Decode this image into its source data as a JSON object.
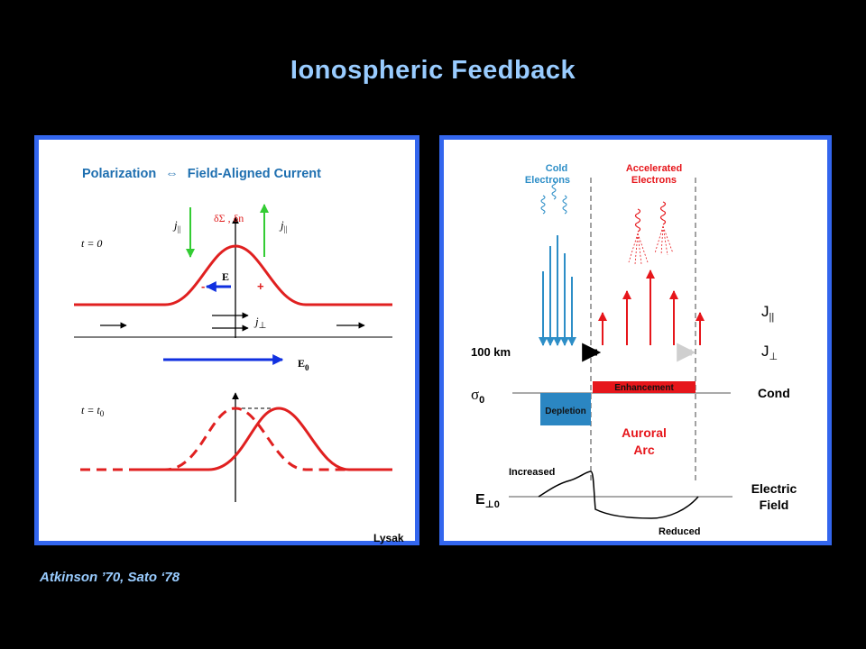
{
  "slide": {
    "title": "Ionospheric Feedback",
    "citation": "Atkinson ’70, Sato ‘78"
  },
  "left_panel": {
    "heading_left": "Polarization",
    "heading_symbol": "⇔",
    "heading_right": "Field-Aligned Current",
    "t0_label": "t = 0",
    "tt0_label": "t = t",
    "tt0_sub": "0",
    "j_par_left": "j",
    "j_par_right": "j",
    "par_sub": "||",
    "delta_label": "δΣ , δn",
    "e_label": "E",
    "minus": "-",
    "plus": "+",
    "j_perp": "j",
    "perp_sub": "⊥",
    "e0_label": "E",
    "e0_sub": "0",
    "credit": "Lysak"
  },
  "right_panel": {
    "cold_electrons": [
      "Cold",
      "Electrons"
    ],
    "accelerated_electrons": [
      "Accelerated",
      "Electrons"
    ],
    "j_parallel": "J",
    "j_perp": "J",
    "par_sub": "||",
    "perp_sub": "⊥",
    "altitude": "100 km",
    "sigma": "σ",
    "sigma_sub": "0",
    "cond": "Cond",
    "enhancement": "Enhancement",
    "depletion": "Depletion",
    "auroral_arc": [
      "Auroral",
      "Arc"
    ],
    "increased": "Increased",
    "e_perp": "E",
    "e_perp_sub": "⊥0",
    "electric_field": [
      "Electric",
      "Field"
    ],
    "reduced": "Reduced"
  },
  "colors": {
    "title": "#99ccff",
    "frame": "#3366ee",
    "heading": "#1e6fb0",
    "curve": "#e02020",
    "e_field_arrow": "#1030e0",
    "green_arrow": "#33cc33",
    "cold_blue": "#2d8ec7",
    "depletion_fill": "#2b86c2",
    "red": "#e6161b"
  }
}
